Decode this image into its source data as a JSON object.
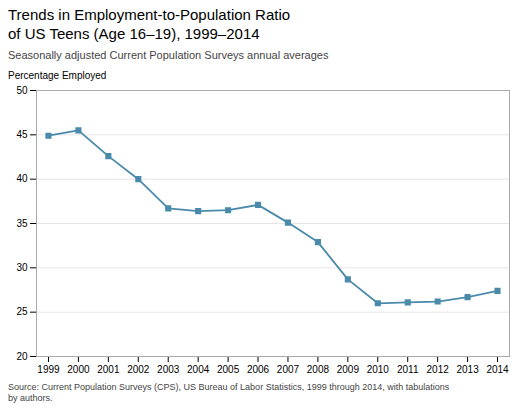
{
  "chart_data": {
    "type": "line",
    "title": "Trends in Employment-to-Population Ratio\nof US Teens (Age 16–19), 1999–2014",
    "subtitle": "Seasonally adjusted Current Population Surveys annual averages",
    "ylabel": "Percentage Employed",
    "source": "Source: Current Population Surveys (CPS), US Bureau of Labor Statistics, 1999 through 2014, with tabulations\nby authors.",
    "x": [
      1999,
      2000,
      2001,
      2002,
      2003,
      2004,
      2005,
      2006,
      2007,
      2008,
      2009,
      2010,
      2011,
      2012,
      2013,
      2014
    ],
    "values": [
      44.9,
      45.5,
      42.6,
      40.0,
      36.7,
      36.4,
      36.5,
      37.1,
      35.1,
      32.9,
      28.7,
      26.0,
      26.1,
      26.2,
      26.7,
      27.4
    ],
    "color": "#4a8aaa",
    "marker": "square",
    "xlim": [
      1998.6,
      2014.4
    ],
    "xticks": [
      1999,
      2000,
      2001,
      2002,
      2003,
      2004,
      2005,
      2006,
      2007,
      2008,
      2009,
      2010,
      2011,
      2012,
      2013,
      2014
    ],
    "ylim": [
      20,
      50
    ],
    "yticks": [
      20,
      25,
      30,
      35,
      40,
      45,
      50
    ],
    "grid": true
  }
}
